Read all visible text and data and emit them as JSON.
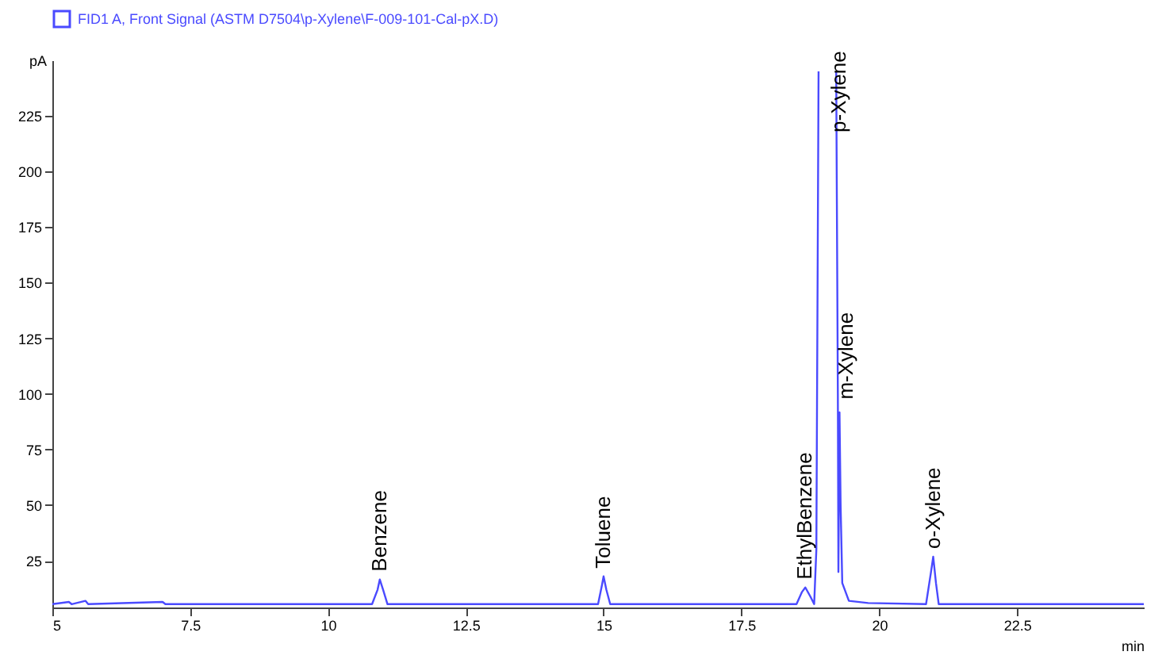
{
  "chart_data": {
    "type": "line",
    "xlabel": "min",
    "ylabel": "pA",
    "legend": "top left",
    "marker": "none",
    "line_style": "solid",
    "xlim": [
      5,
      24.8
    ],
    "xticks": [
      5,
      7.5,
      10,
      12.5,
      15,
      17.5,
      20,
      22.5
    ],
    "ylim": [
      4,
      250
    ],
    "yticks": [
      25,
      50,
      75,
      100,
      125,
      150,
      175,
      200,
      225
    ],
    "series": [
      {
        "name": "FID1 A, Front Signal (ASTM D7504\\p-Xylene\\F-009-101-Cal-pX.D)",
        "color": "#4a4aff",
        "x": [
          5.0,
          5.3,
          5.35,
          5.6,
          5.65,
          7.0,
          7.05,
          10.8,
          10.9,
          10.94,
          11.0,
          11.08,
          14.9,
          14.97,
          15.0,
          15.05,
          15.12,
          18.5,
          18.6,
          18.66,
          18.75,
          18.82,
          18.86,
          18.9,
          19.06,
          19.22,
          19.25,
          19.26,
          19.28,
          19.3,
          19.33,
          19.45,
          19.8,
          20.85,
          20.94,
          20.98,
          21.03,
          21.08,
          24.8
        ],
        "values": [
          5.5,
          6.5,
          5.5,
          7,
          5.5,
          6.5,
          5.5,
          5.5,
          12,
          16.6,
          12,
          5.5,
          5.5,
          14,
          18,
          12,
          5.5,
          5.5,
          11,
          13,
          9,
          5.5,
          30,
          245,
          null,
          245,
          100,
          20,
          91.7,
          50,
          15,
          7,
          6,
          5.5,
          20,
          26.8,
          15,
          5.5,
          5.5
        ]
      }
    ],
    "annotations": [
      {
        "text": "Benzene",
        "x": 10.94,
        "y": 16.6
      },
      {
        "text": "Toluene",
        "x": 15.0,
        "y": 18
      },
      {
        "text": "EthylBenzene",
        "x": 18.66,
        "y": 13
      },
      {
        "text": "p-Xylene",
        "x": 19.27,
        "y": 214
      },
      {
        "text": "m-Xylene",
        "x": 19.4,
        "y": 94
      },
      {
        "text": "o-Xylene",
        "x": 20.98,
        "y": 26.8
      }
    ]
  }
}
